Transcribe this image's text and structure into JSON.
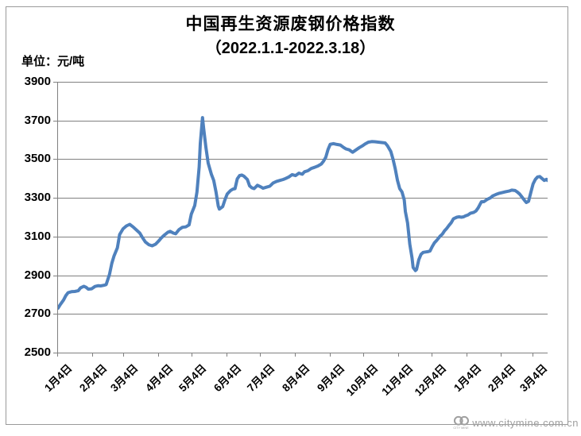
{
  "title": "中国再生资源废钢价格指数",
  "subtitle": "（2022.1.1-2022.3.18）",
  "unit_label": "单位：元/吨",
  "watermark": {
    "url_text": "www.citymine.com.cn",
    "logo_caption": "CITY MINE"
  },
  "colors": {
    "line": "#4F81BD",
    "grid": "#808080",
    "axis": "#808080",
    "watermark_gray": "#a0a0a0"
  },
  "chart_data": {
    "type": "line",
    "title": "中国再生资源废钢价格指数",
    "subtitle": "（2022.1.1-2022.3.18）",
    "ylabel": "单位：元/吨",
    "ylim": [
      2500,
      3900
    ],
    "yticks": [
      2500,
      2700,
      2900,
      3100,
      3300,
      3500,
      3700,
      3900
    ],
    "grid": true,
    "legend": "none",
    "xtick_labels": [
      "1月4日",
      "2月4日",
      "3月4日",
      "4月4日",
      "5月4日",
      "6月4日",
      "7月4日",
      "8月4日",
      "9月4日",
      "10月4日",
      "11月4日",
      "12月4日",
      "1月4日",
      "2月4日",
      "3月4日"
    ],
    "xtick_days": [
      0,
      31,
      59,
      90,
      120,
      151,
      181,
      212,
      243,
      273,
      304,
      334,
      365,
      396,
      424
    ],
    "total_days": 437,
    "series": [
      {
        "name": "废钢价格指数",
        "points": [
          [
            0,
            2730
          ],
          [
            2,
            2748
          ],
          [
            5,
            2772
          ],
          [
            7,
            2795
          ],
          [
            9,
            2810
          ],
          [
            12,
            2815
          ],
          [
            15,
            2816
          ],
          [
            18,
            2820
          ],
          [
            20,
            2834
          ],
          [
            23,
            2843
          ],
          [
            25,
            2838
          ],
          [
            27,
            2828
          ],
          [
            30,
            2830
          ],
          [
            33,
            2842
          ],
          [
            36,
            2846
          ],
          [
            38,
            2845
          ],
          [
            41,
            2848
          ],
          [
            43,
            2852
          ],
          [
            46,
            2905
          ],
          [
            48,
            2962
          ],
          [
            50,
            3000
          ],
          [
            53,
            3042
          ],
          [
            55,
            3110
          ],
          [
            58,
            3140
          ],
          [
            61,
            3155
          ],
          [
            64,
            3163
          ],
          [
            67,
            3150
          ],
          [
            70,
            3134
          ],
          [
            73,
            3118
          ],
          [
            75,
            3098
          ],
          [
            78,
            3072
          ],
          [
            81,
            3058
          ],
          [
            84,
            3052
          ],
          [
            87,
            3060
          ],
          [
            90,
            3078
          ],
          [
            92,
            3092
          ],
          [
            95,
            3108
          ],
          [
            98,
            3122
          ],
          [
            100,
            3127
          ],
          [
            103,
            3118
          ],
          [
            105,
            3114
          ],
          [
            108,
            3136
          ],
          [
            111,
            3148
          ],
          [
            114,
            3150
          ],
          [
            117,
            3160
          ],
          [
            119,
            3216
          ],
          [
            122,
            3260
          ],
          [
            124,
            3330
          ],
          [
            126,
            3460
          ],
          [
            127,
            3580
          ],
          [
            129,
            3715
          ],
          [
            130,
            3660
          ],
          [
            132,
            3560
          ],
          [
            134,
            3480
          ],
          [
            137,
            3420
          ],
          [
            139,
            3390
          ],
          [
            141,
            3330
          ],
          [
            143,
            3258
          ],
          [
            144,
            3242
          ],
          [
            147,
            3255
          ],
          [
            149,
            3290
          ],
          [
            151,
            3320
          ],
          [
            154,
            3338
          ],
          [
            156,
            3345
          ],
          [
            158,
            3348
          ],
          [
            160,
            3398
          ],
          [
            162,
            3415
          ],
          [
            164,
            3418
          ],
          [
            166,
            3412
          ],
          [
            169,
            3395
          ],
          [
            171,
            3362
          ],
          [
            173,
            3352
          ],
          [
            175,
            3348
          ],
          [
            178,
            3365
          ],
          [
            181,
            3357
          ],
          [
            183,
            3350
          ],
          [
            186,
            3355
          ],
          [
            189,
            3360
          ],
          [
            192,
            3377
          ],
          [
            195,
            3385
          ],
          [
            198,
            3390
          ],
          [
            201,
            3395
          ],
          [
            203,
            3400
          ],
          [
            206,
            3408
          ],
          [
            209,
            3420
          ],
          [
            212,
            3415
          ],
          [
            215,
            3428
          ],
          [
            218,
            3422
          ],
          [
            220,
            3435
          ],
          [
            223,
            3440
          ],
          [
            226,
            3452
          ],
          [
            229,
            3458
          ],
          [
            232,
            3465
          ],
          [
            235,
            3475
          ],
          [
            237,
            3490
          ],
          [
            239,
            3510
          ],
          [
            241,
            3550
          ],
          [
            243,
            3577
          ],
          [
            246,
            3580
          ],
          [
            249,
            3576
          ],
          [
            252,
            3573
          ],
          [
            255,
            3560
          ],
          [
            257,
            3553
          ],
          [
            260,
            3548
          ],
          [
            263,
            3536
          ],
          [
            266,
            3548
          ],
          [
            269,
            3560
          ],
          [
            272,
            3570
          ],
          [
            274,
            3578
          ],
          [
            277,
            3588
          ],
          [
            280,
            3591
          ],
          [
            283,
            3590
          ],
          [
            286,
            3588
          ],
          [
            289,
            3586
          ],
          [
            292,
            3584
          ],
          [
            294,
            3570
          ],
          [
            297,
            3540
          ],
          [
            299,
            3500
          ],
          [
            301,
            3450
          ],
          [
            303,
            3390
          ],
          [
            305,
            3348
          ],
          [
            307,
            3330
          ],
          [
            309,
            3290
          ],
          [
            310,
            3230
          ],
          [
            312,
            3170
          ],
          [
            313,
            3115
          ],
          [
            314,
            3060
          ],
          [
            316,
            2990
          ],
          [
            317,
            2940
          ],
          [
            319,
            2924
          ],
          [
            320,
            2930
          ],
          [
            322,
            2980
          ],
          [
            324,
            3008
          ],
          [
            326,
            3018
          ],
          [
            328,
            3020
          ],
          [
            330,
            3022
          ],
          [
            332,
            3025
          ],
          [
            334,
            3048
          ],
          [
            336,
            3068
          ],
          [
            338,
            3080
          ],
          [
            341,
            3102
          ],
          [
            343,
            3112
          ],
          [
            345,
            3130
          ],
          [
            347,
            3142
          ],
          [
            349,
            3158
          ],
          [
            351,
            3172
          ],
          [
            353,
            3192
          ],
          [
            356,
            3200
          ],
          [
            358,
            3202
          ],
          [
            360,
            3200
          ],
          [
            362,
            3202
          ],
          [
            364,
            3208
          ],
          [
            366,
            3212
          ],
          [
            368,
            3220
          ],
          [
            371,
            3225
          ],
          [
            373,
            3232
          ],
          [
            375,
            3248
          ],
          [
            377,
            3270
          ],
          [
            378,
            3280
          ],
          [
            380,
            3280
          ],
          [
            383,
            3292
          ],
          [
            386,
            3300
          ],
          [
            388,
            3310
          ],
          [
            391,
            3318
          ],
          [
            394,
            3324
          ],
          [
            397,
            3328
          ],
          [
            400,
            3332
          ],
          [
            403,
            3336
          ],
          [
            405,
            3340
          ],
          [
            408,
            3338
          ],
          [
            410,
            3330
          ],
          [
            412,
            3320
          ],
          [
            414,
            3305
          ],
          [
            416,
            3290
          ],
          [
            418,
            3276
          ],
          [
            420,
            3282
          ],
          [
            422,
            3328
          ],
          [
            424,
            3372
          ],
          [
            426,
            3395
          ],
          [
            428,
            3408
          ],
          [
            430,
            3410
          ],
          [
            432,
            3400
          ],
          [
            434,
            3390
          ],
          [
            436,
            3396
          ],
          [
            437,
            3390
          ]
        ]
      }
    ]
  }
}
